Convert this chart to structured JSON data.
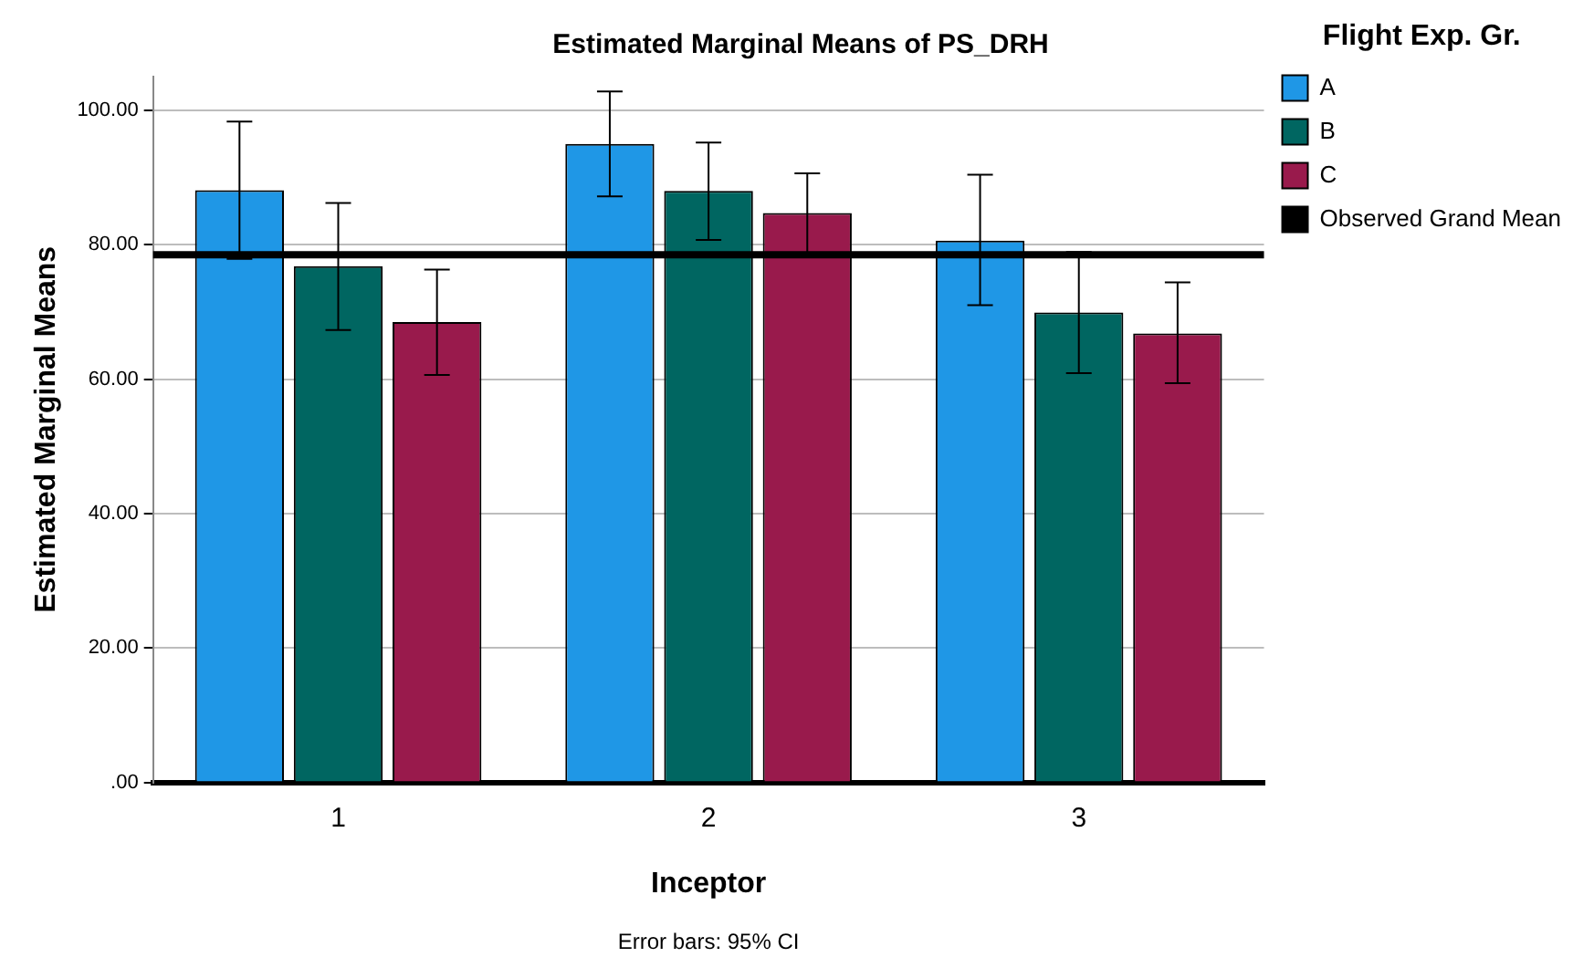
{
  "chart_data": {
    "type": "bar",
    "title": "Estimated Marginal Means of PS_DRH",
    "xlabel": "Inceptor",
    "ylabel": "Estimated Marginal Means",
    "legend_title": "Flight Exp. Gr.",
    "categories": [
      "1",
      "2",
      "3"
    ],
    "series": [
      {
        "name": "A",
        "color": "#1f97e6",
        "values": [
          88.1,
          95.0,
          80.6
        ],
        "errors": [
          [
            77.9,
            98.3
          ],
          [
            87.2,
            102.8
          ],
          [
            71.0,
            90.4
          ]
        ]
      },
      {
        "name": "B",
        "color": "#006661",
        "values": [
          76.8,
          88.0,
          69.9
        ],
        "errors": [
          [
            67.3,
            86.2
          ],
          [
            80.7,
            95.2
          ],
          [
            60.9,
            78.9
          ]
        ]
      },
      {
        "name": "C",
        "color": "#991a4c",
        "values": [
          68.5,
          84.7,
          66.8
        ],
        "errors": [
          [
            60.6,
            76.3
          ],
          [
            78.8,
            90.6
          ],
          [
            59.4,
            74.4
          ]
        ]
      }
    ],
    "ylim": [
      0,
      105
    ],
    "yticks": [
      {
        "value": 0,
        "label": ".00"
      },
      {
        "value": 20,
        "label": "20.00"
      },
      {
        "value": 40,
        "label": "40.00"
      },
      {
        "value": 60,
        "label": "60.00"
      },
      {
        "value": 80,
        "label": "80.00"
      },
      {
        "value": 100,
        "label": "100.00"
      }
    ],
    "grid": "y",
    "legend": "top right",
    "ref_lines": [
      {
        "axis": "y",
        "value": 78.5,
        "label": "Observed Grand Mean",
        "color": "#000000"
      }
    ],
    "annotations": [
      "Error bars: 95% CI"
    ]
  }
}
